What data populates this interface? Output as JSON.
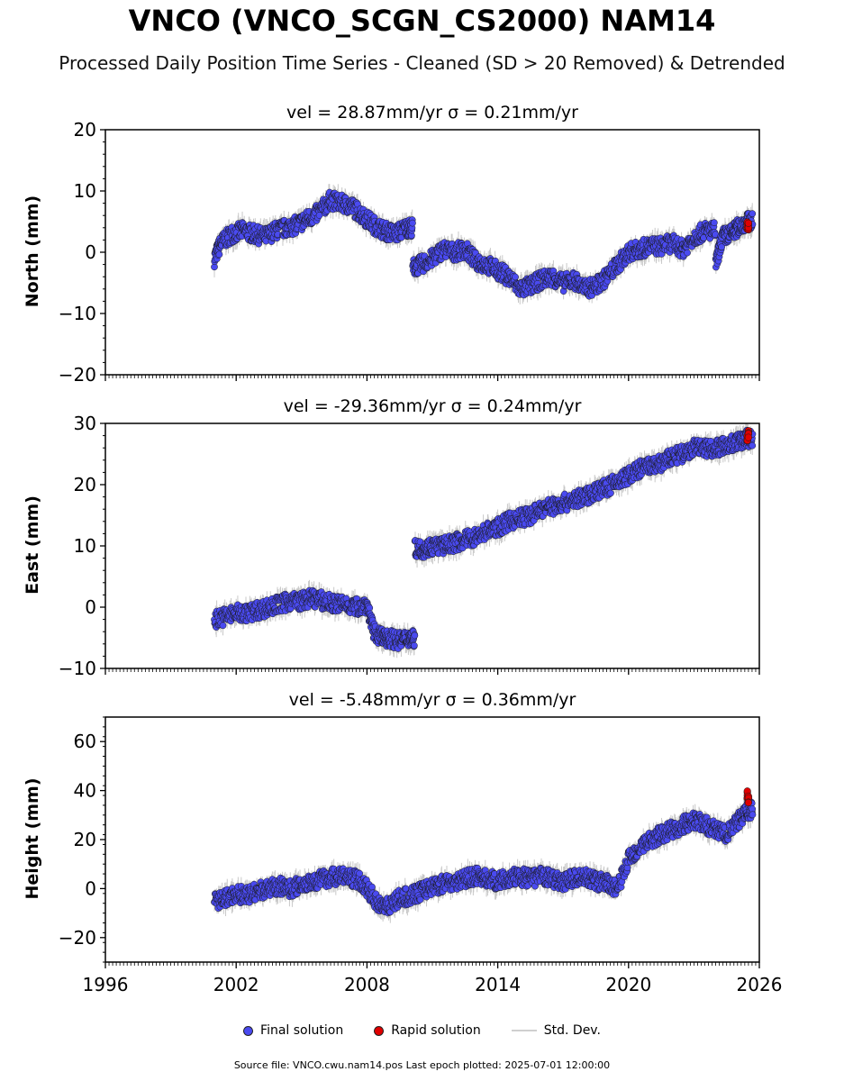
{
  "title": "VNCO (VNCO_SCGN_CS2000) NAM14",
  "subtitle": "Processed Daily Position Time Series - Cleaned (SD > 20 Removed) & Detrended",
  "source": "Source file: VNCO.cwu.nam14.pos  Last epoch plotted: 2025-07-01 12:00:00",
  "legend": {
    "final": "Final solution",
    "rapid": "Rapid solution",
    "std": "Std. Dev."
  },
  "colors": {
    "final": "#4a4af0",
    "rapid": "#e00000",
    "std": "#c8c8c8",
    "edge": "#1a1a1a"
  },
  "chart_data": [
    {
      "type": "scatter",
      "title": "vel = 28.87mm/yr   σ = 0.21mm/yr",
      "ylabel": "North (mm)",
      "xlim": [
        1996,
        2026
      ],
      "ylim": [
        -20,
        20
      ],
      "xticks": [
        1996,
        2002,
        2008,
        2014,
        2020,
        2026
      ],
      "yticks": [
        -20,
        -10,
        0,
        10,
        20
      ],
      "series": [
        {
          "name": "Final solution",
          "x": [
            2001.0,
            2001.3,
            2001.8,
            2002.3,
            2002.8,
            2003.3,
            2003.8,
            2004.3,
            2004.8,
            2005.3,
            2005.8,
            2006.3,
            2006.8,
            2007.3,
            2007.8,
            2008.3,
            2008.8,
            2009.3,
            2009.8,
            2010.1,
            2010.5,
            2011.0,
            2011.5,
            2012.0,
            2012.5,
            2013.0,
            2013.5,
            2014.0,
            2014.5,
            2015.0,
            2015.5,
            2016.0,
            2016.5,
            2017.0,
            2017.5,
            2018.0,
            2018.5,
            2019.0,
            2019.5,
            2020.0,
            2020.5,
            2021.0,
            2021.5,
            2022.0,
            2022.5,
            2023.0,
            2023.5,
            2024.0,
            2024.3,
            2024.7,
            2025.0,
            2025.4
          ],
          "y": [
            -1.0,
            1.5,
            3.0,
            3.5,
            3.0,
            2.5,
            3.5,
            4.0,
            4.5,
            5.5,
            6.5,
            8.5,
            8.0,
            7.5,
            6.0,
            4.5,
            3.5,
            3.0,
            4.0,
            -2.5,
            -2.0,
            -1.0,
            0.5,
            0.0,
            0.5,
            -1.5,
            -2.0,
            -3.0,
            -4.0,
            -6.0,
            -5.5,
            -4.5,
            -4.0,
            -5.0,
            -4.5,
            -6.0,
            -5.5,
            -4.0,
            -2.0,
            0.0,
            0.5,
            1.0,
            1.0,
            1.5,
            0.5,
            2.5,
            3.5,
            -2.0,
            2.5,
            3.0,
            4.0,
            5.0
          ]
        },
        {
          "name": "Rapid solution",
          "x": [
            2025.45,
            2025.5
          ],
          "y": [
            4.5,
            4.0
          ]
        }
      ]
    },
    {
      "type": "scatter",
      "title": "vel = -29.36mm/yr   σ = 0.24mm/yr",
      "ylabel": "East (mm)",
      "xlim": [
        1996,
        2026
      ],
      "ylim": [
        -10,
        30
      ],
      "xticks": [
        1996,
        2002,
        2008,
        2014,
        2020,
        2026
      ],
      "yticks": [
        -10,
        0,
        10,
        20,
        30
      ],
      "series": [
        {
          "name": "Final solution",
          "x": [
            2001.0,
            2001.5,
            2002.0,
            2002.5,
            2003.0,
            2003.5,
            2004.0,
            2004.5,
            2005.0,
            2005.5,
            2006.0,
            2006.5,
            2007.0,
            2007.5,
            2008.0,
            2008.3,
            2008.7,
            2009.0,
            2009.5,
            2009.9,
            2010.2,
            2010.6,
            2011.0,
            2011.5,
            2012.0,
            2012.5,
            2013.0,
            2013.5,
            2014.0,
            2014.5,
            2015.0,
            2015.5,
            2016.0,
            2016.5,
            2017.0,
            2017.5,
            2018.0,
            2018.5,
            2019.0,
            2019.5,
            2020.0,
            2020.5,
            2021.0,
            2021.5,
            2022.0,
            2022.5,
            2023.0,
            2023.5,
            2024.0,
            2024.5,
            2025.0,
            2025.4
          ],
          "y": [
            -2.0,
            -1.5,
            -1.0,
            -1.0,
            -0.5,
            0.0,
            0.5,
            1.0,
            1.0,
            1.5,
            1.0,
            0.5,
            0.5,
            0.0,
            0.5,
            -4.0,
            -5.0,
            -5.0,
            -5.5,
            -5.0,
            9.5,
            9.5,
            10.0,
            10.0,
            10.5,
            11.0,
            11.5,
            12.5,
            13.0,
            14.0,
            14.5,
            15.0,
            16.0,
            16.5,
            17.0,
            17.5,
            18.0,
            19.0,
            19.5,
            20.5,
            21.5,
            22.5,
            23.0,
            23.5,
            24.5,
            25.0,
            26.0,
            26.0,
            26.0,
            26.5,
            27.0,
            27.5
          ]
        },
        {
          "name": "Rapid solution",
          "x": [
            2025.45,
            2025.5
          ],
          "y": [
            27.5,
            28.0
          ]
        }
      ]
    },
    {
      "type": "scatter",
      "title": "vel = -5.48mm/yr   σ = 0.36mm/yr",
      "ylabel": "Height (mm)",
      "xlim": [
        1996,
        2026
      ],
      "ylim": [
        -30,
        70
      ],
      "xticks": [
        1996,
        2002,
        2008,
        2014,
        2020,
        2026
      ],
      "yticks": [
        -20,
        0,
        20,
        40,
        60
      ],
      "series": [
        {
          "name": "Final solution",
          "x": [
            2001.0,
            2001.5,
            2002.0,
            2002.5,
            2003.0,
            2003.5,
            2004.0,
            2004.5,
            2005.0,
            2005.5,
            2006.0,
            2006.5,
            2007.0,
            2007.5,
            2008.0,
            2008.5,
            2009.0,
            2009.5,
            2010.0,
            2010.5,
            2011.0,
            2011.5,
            2012.0,
            2012.5,
            2013.0,
            2013.5,
            2014.0,
            2014.5,
            2015.0,
            2015.5,
            2016.0,
            2016.5,
            2017.0,
            2017.5,
            2018.0,
            2018.5,
            2019.0,
            2019.5,
            2020.0,
            2020.5,
            2021.0,
            2021.5,
            2022.0,
            2022.5,
            2023.0,
            2023.5,
            2024.0,
            2024.5,
            2025.0,
            2025.4
          ],
          "y": [
            -5.0,
            -4.0,
            -2.0,
            -3.0,
            -1.0,
            0.0,
            1.0,
            0.0,
            2.0,
            3.0,
            4.0,
            5.0,
            5.0,
            4.0,
            0.0,
            -6.0,
            -7.0,
            -4.0,
            -3.0,
            -1.0,
            1.0,
            2.0,
            3.0,
            4.0,
            5.0,
            4.0,
            3.0,
            4.0,
            5.0,
            4.0,
            5.0,
            4.0,
            3.0,
            4.0,
            5.0,
            3.0,
            2.0,
            0.0,
            12.0,
            17.0,
            20.0,
            22.0,
            24.0,
            26.0,
            28.0,
            26.0,
            24.0,
            22.0,
            27.0,
            32.0
          ]
        },
        {
          "name": "Rapid solution",
          "x": [
            2025.45,
            2025.5
          ],
          "y": [
            38.0,
            36.0
          ]
        }
      ]
    }
  ]
}
